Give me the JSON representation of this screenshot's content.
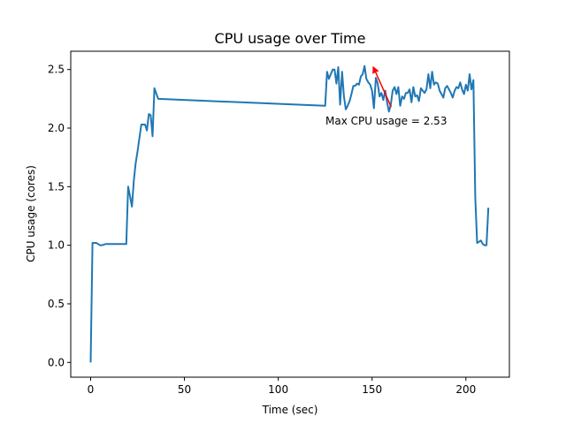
{
  "chart_data": {
    "type": "line",
    "title": "CPU usage over Time",
    "xlabel": "Time (sec)",
    "ylabel": "CPU usage (cores)",
    "xlim": [
      -10.6,
      223.2
    ],
    "ylim": [
      -0.126,
      2.656
    ],
    "xticks": [
      0,
      50,
      100,
      150,
      200
    ],
    "xtick_labels": [
      "0",
      "50",
      "100",
      "150",
      "200"
    ],
    "yticks": [
      0.0,
      0.5,
      1.0,
      1.5,
      2.0,
      2.5
    ],
    "ytick_labels": [
      "0.0",
      "0.5",
      "1.0",
      "1.5",
      "2.0",
      "2.5"
    ],
    "grid": false,
    "series": [
      {
        "color": "#1f77b4",
        "x": [
          0,
          1,
          2,
          3,
          4,
          5,
          6,
          8,
          10,
          12,
          14,
          16,
          18,
          19,
          20,
          21,
          22,
          23,
          24,
          25,
          27,
          28,
          29,
          30,
          31,
          32,
          33,
          34,
          36,
          125,
          126,
          127,
          128,
          129,
          130,
          131,
          132,
          133,
          134,
          135,
          136,
          137,
          138,
          139,
          140,
          141,
          142,
          143,
          144,
          145,
          146,
          147,
          148,
          149,
          150,
          151,
          152,
          153,
          154,
          155,
          156,
          157,
          158,
          159,
          160,
          161,
          162,
          163,
          164,
          165,
          166,
          167,
          168,
          169,
          170,
          171,
          172,
          173,
          174,
          175,
          176,
          177,
          178,
          179,
          180,
          181,
          182,
          183,
          184,
          185,
          186,
          187,
          188,
          189,
          190,
          191,
          192,
          193,
          194,
          195,
          196,
          197,
          198,
          199,
          200,
          201,
          202,
          203,
          204,
          205,
          206,
          207,
          208,
          209,
          210,
          211,
          212
        ],
        "y": [
          0.0,
          1.02,
          1.02,
          1.02,
          1.01,
          1.0,
          1.0,
          1.01,
          1.01,
          1.01,
          1.01,
          1.01,
          1.01,
          1.01,
          1.5,
          1.42,
          1.33,
          1.55,
          1.7,
          1.8,
          2.03,
          2.03,
          2.03,
          1.98,
          2.12,
          2.11,
          1.93,
          2.34,
          2.25,
          2.19,
          2.48,
          2.42,
          2.46,
          2.5,
          2.5,
          2.38,
          2.52,
          2.2,
          2.48,
          2.27,
          2.16,
          2.19,
          2.23,
          2.29,
          2.36,
          2.36,
          2.38,
          2.37,
          2.44,
          2.46,
          2.53,
          2.42,
          2.39,
          2.37,
          2.32,
          2.17,
          2.43,
          2.38,
          2.27,
          2.3,
          2.24,
          2.32,
          2.22,
          2.14,
          2.2,
          2.32,
          2.35,
          2.29,
          2.35,
          2.19,
          2.27,
          2.25,
          2.3,
          2.3,
          2.33,
          2.22,
          2.35,
          2.27,
          2.28,
          2.23,
          2.34,
          2.32,
          2.3,
          2.33,
          2.46,
          2.34,
          2.48,
          2.37,
          2.39,
          2.38,
          2.32,
          2.29,
          2.26,
          2.34,
          2.36,
          2.33,
          2.3,
          2.26,
          2.32,
          2.35,
          2.34,
          2.39,
          2.33,
          2.29,
          2.37,
          2.32,
          2.46,
          2.33,
          2.41,
          1.41,
          1.02,
          1.03,
          1.04,
          1.01,
          1.0,
          1.0,
          1.32
        ]
      }
    ],
    "annotation": {
      "text": "Max CPU usage = 2.53",
      "color": "#ff0000",
      "xy": [
        150.4,
        2.53
      ],
      "xytext": [
        160.2,
        2.18
      ]
    }
  }
}
